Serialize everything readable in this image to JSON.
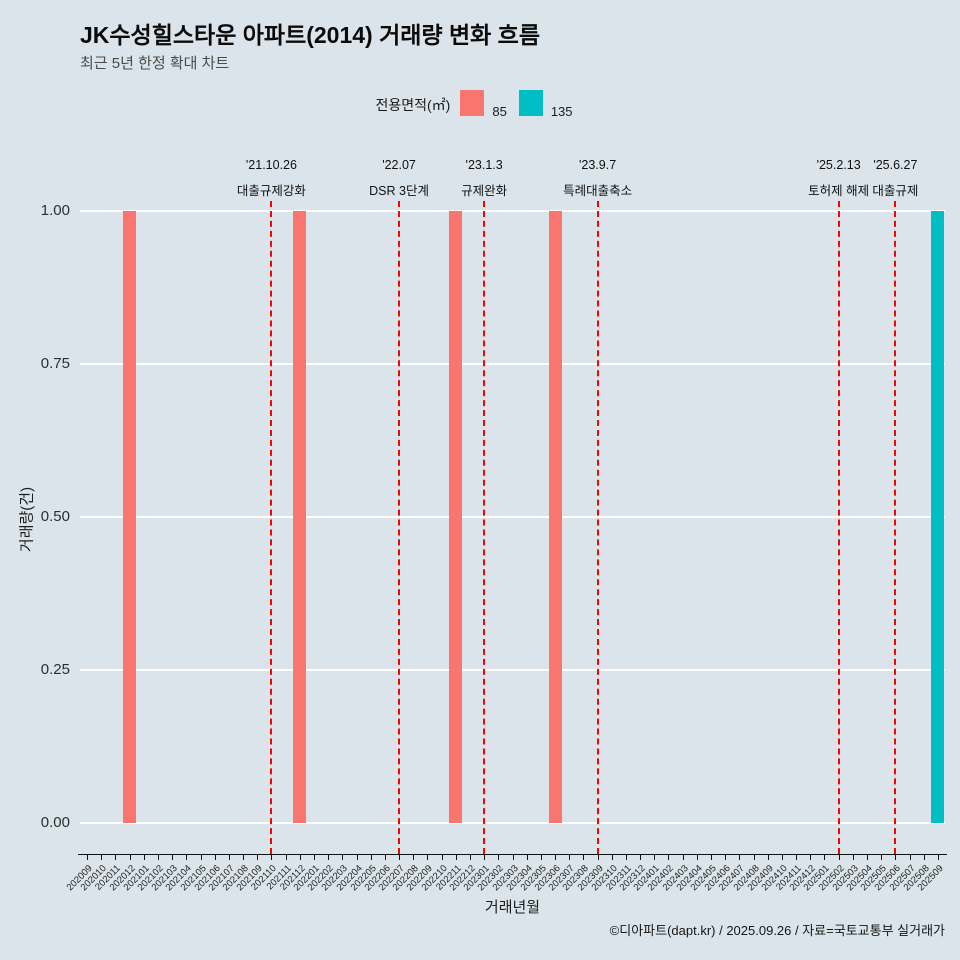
{
  "title": "JK수성힐스타운 아파트(2014) 거래량 변화 흐름",
  "subtitle": "최근 5년 한정 확대 차트",
  "caption": "©디아파트(dapt.kr) / 2025.09.26 / 자료=국토교통부 실거래가",
  "colors": {
    "background": "#dbe4ea",
    "bar_85": "#f8766d",
    "bar_135": "#00bfc4",
    "event_line": "#ff0000",
    "gridline": "#ffffff"
  },
  "legend": {
    "label": "전용면적(㎡)",
    "items": [
      {
        "label": "85",
        "color": "#f8766d"
      },
      {
        "label": "135",
        "color": "#00bfc4"
      }
    ]
  },
  "chart_data": {
    "type": "bar",
    "title": "JK수성힐스타운 아파트(2014) 거래량 변화 흐름",
    "xlabel": "거래년월",
    "ylabel": "거래량(건)",
    "ylim": [
      0,
      1
    ],
    "yticks": [
      0,
      0.25,
      0.5,
      0.75,
      1
    ],
    "ytick_labels": [
      "0.00",
      "0.25",
      "0.50",
      "0.75",
      "1.00"
    ],
    "grid": "horizontal-major-white",
    "legend_position": "top-center",
    "x": [
      "202009",
      "202010",
      "202011",
      "202012",
      "202101",
      "202102",
      "202103",
      "202104",
      "202105",
      "202106",
      "202107",
      "202108",
      "202109",
      "202110",
      "202111",
      "202112",
      "202201",
      "202202",
      "202203",
      "202204",
      "202205",
      "202206",
      "202207",
      "202208",
      "202209",
      "202210",
      "202211",
      "202212",
      "202301",
      "202302",
      "202303",
      "202304",
      "202305",
      "202306",
      "202307",
      "202308",
      "202309",
      "202310",
      "202311",
      "202312",
      "202401",
      "202402",
      "202403",
      "202404",
      "202405",
      "202406",
      "202407",
      "202408",
      "202409",
      "202410",
      "202411",
      "202412",
      "202501",
      "202502",
      "202503",
      "202504",
      "202505",
      "202506",
      "202507",
      "202508",
      "202509"
    ],
    "series": [
      {
        "name": "85",
        "color": "#f8766d",
        "points": [
          {
            "month": "202012",
            "value": 1
          },
          {
            "month": "202112",
            "value": 1
          },
          {
            "month": "202211",
            "value": 1
          },
          {
            "month": "202306",
            "value": 1
          }
        ]
      },
      {
        "name": "135",
        "color": "#00bfc4",
        "points": [
          {
            "month": "202509",
            "value": 1
          }
        ]
      }
    ],
    "event_lines": [
      {
        "month": "202110",
        "date": "'21.10.26",
        "label": "대출규제강화"
      },
      {
        "month": "202207",
        "date": "'22.07",
        "label": "DSR 3단계"
      },
      {
        "month": "202301",
        "date": "'23.1.3",
        "label": "규제완화"
      },
      {
        "month": "202309",
        "date": "'23.9.7",
        "label": "특례대출축소"
      },
      {
        "month": "202502",
        "date": "'25.2.13",
        "label": "토허제 해제"
      },
      {
        "month": "202506",
        "date": "'25.6.27",
        "label": "대출규제"
      }
    ]
  }
}
